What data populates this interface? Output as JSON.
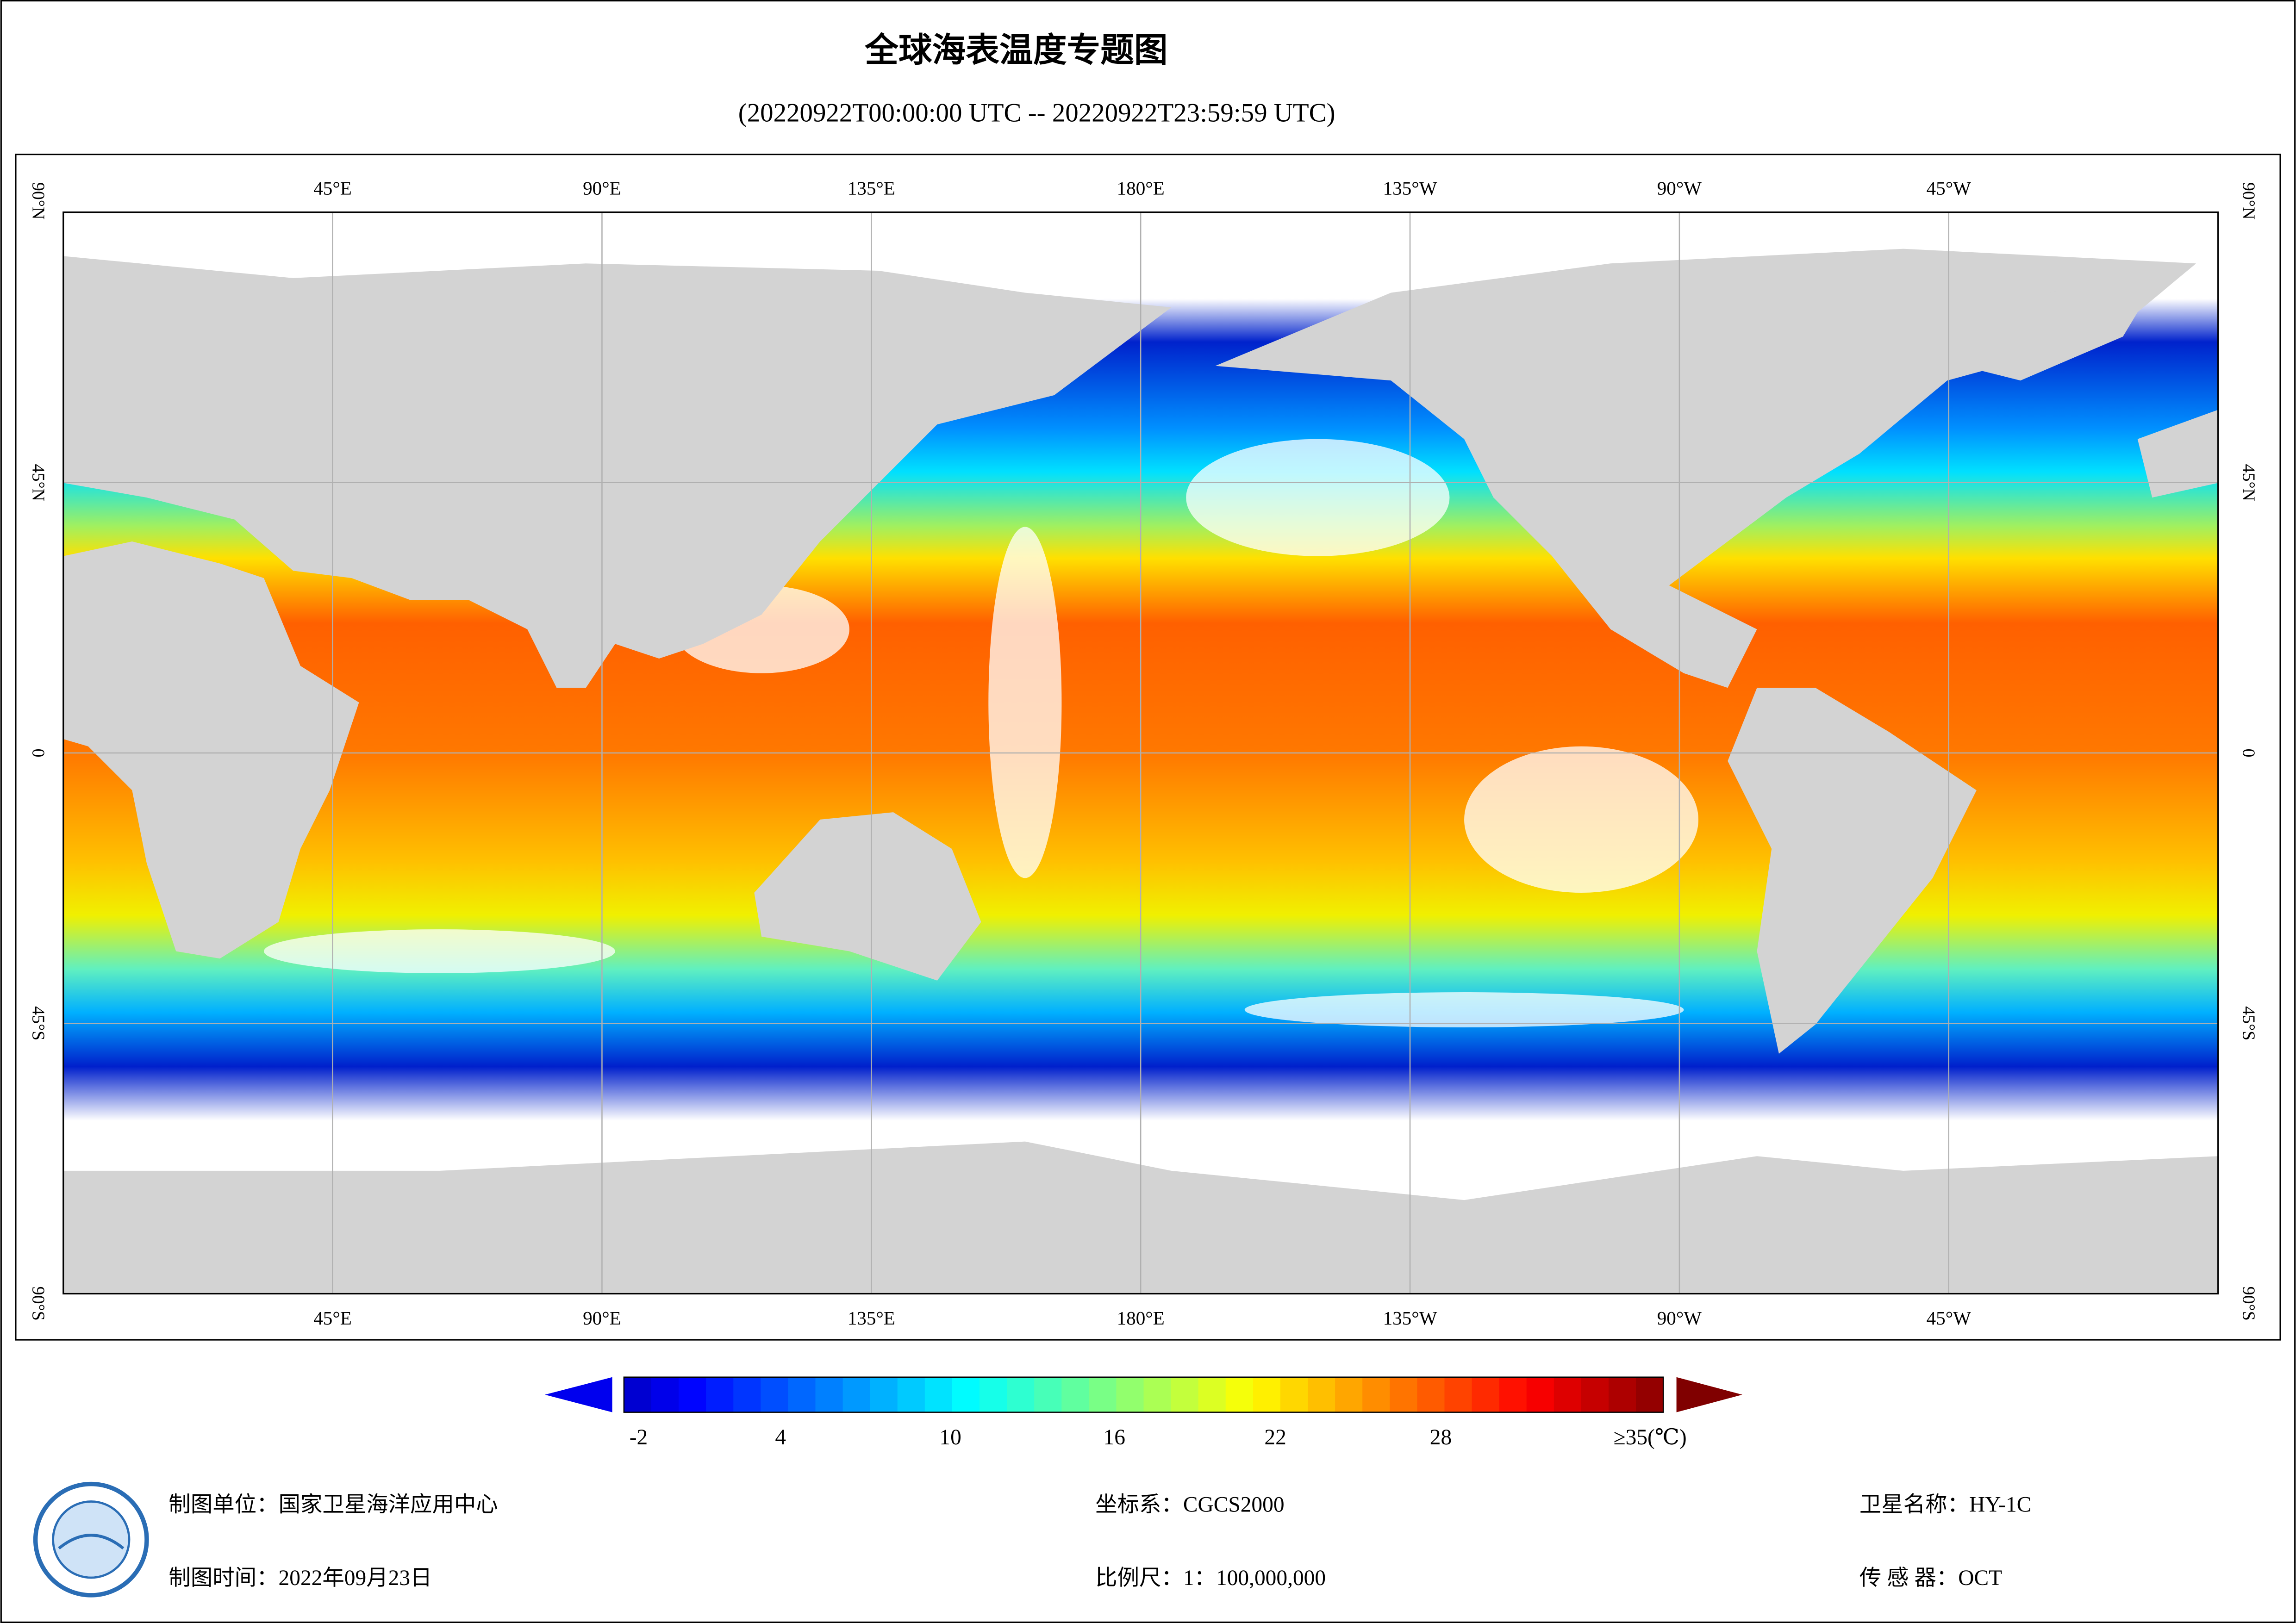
{
  "title": "全球海表温度专题图",
  "subtitle": "(20220922T00:00:00 UTC -- 20220922T23:59:59 UTC)",
  "map": {
    "lon_labels": [
      "45°E",
      "90°E",
      "135°E",
      "180°E",
      "135°W",
      "90°W",
      "45°W"
    ],
    "lat_labels": [
      "90°N",
      "45°N",
      "0",
      "45°S",
      "90°S"
    ]
  },
  "colorbar": {
    "labels": [
      "-2",
      "4",
      "10",
      "16",
      "22",
      "28",
      "≥35(℃)"
    ]
  },
  "footer": {
    "agency": "制图单位：国家卫星海洋应用中心",
    "date": "制图时间：2022年09月23日",
    "crs": "坐标系：CGCS2000",
    "scale": "比例尺：1：100,000,000",
    "satellite": "卫星名称：HY-1C",
    "sensor": "传 感 器：OCT"
  }
}
